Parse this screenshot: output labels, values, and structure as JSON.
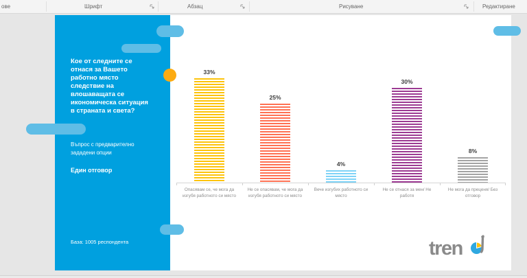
{
  "ribbon": {
    "groups": [
      {
        "label": "ове"
      },
      {
        "label": "Шрифт"
      },
      {
        "label": "Абзац"
      },
      {
        "label": "Рисуване"
      },
      {
        "label": "Редактиране"
      }
    ]
  },
  "slide": {
    "question": "Кое от следните се отнася за Вашето работно място следствие на влошаващата се икономическа ситуация в страната и света?",
    "question_type": "Въпрос с предварително зададени опции",
    "answer_mode": "Един отговор",
    "base_note": "База: 1005 респондента",
    "logo_text": "trend"
  },
  "chart_data": {
    "type": "bar",
    "title": "",
    "categories": [
      "Опасявам се, че мога да изгубя работното си място",
      "Не се опасявам, че мога да изгубя работното си място",
      "Вече изгубих работното си място",
      "Не се отнася за мен/ Не работя",
      "Не мога да преценя/ Без отговор"
    ],
    "values": [
      33,
      25,
      4,
      30,
      8
    ],
    "value_labels": [
      "33%",
      "25%",
      "4%",
      "30%",
      "8%"
    ],
    "bar_colors": [
      "#fdc30a",
      "#ff7052",
      "#7ed3f7",
      "#9c3a92",
      "#a3a3a3"
    ],
    "bar_style": "horizontal-stripes",
    "ylim": [
      0,
      35
    ],
    "grid": false,
    "legend": "none"
  },
  "colors": {
    "panel_blue": "#00a0df",
    "pill_blue": "#5fbde6",
    "accent_orange": "#fcab12",
    "logo_gray": "#8a8a8a",
    "logo_pie_blue": "#2fa8e0",
    "logo_pie_yellow": "#ffc20e"
  }
}
